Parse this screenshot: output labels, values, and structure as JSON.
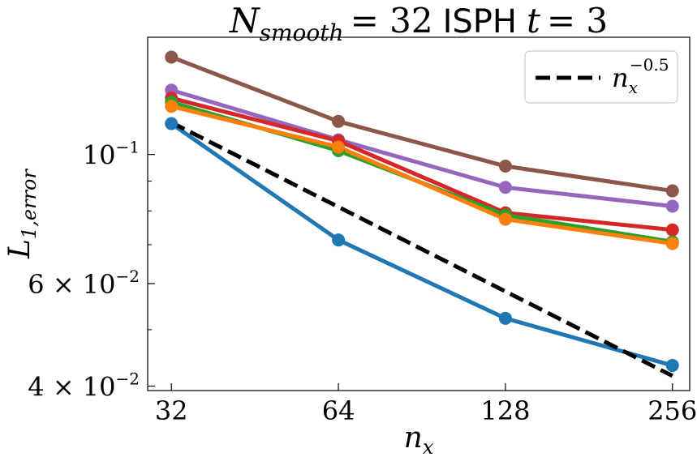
{
  "chart_data": {
    "type": "line",
    "title": {
      "prefix_var": "N",
      "prefix_sub": "smooth",
      "eq_value": "= 32",
      "method": "ISPH",
      "time_var": "t",
      "time_eq": "= 3"
    },
    "xlabel": {
      "var": "n",
      "sub": "x"
    },
    "ylabel": {
      "var": "L",
      "sub": "1,error"
    },
    "x": [
      32,
      64,
      128,
      256
    ],
    "xscale": "log2",
    "yscale": "log",
    "xlim": [
      29,
      275
    ],
    "ylim": [
      0.0393,
      0.159
    ],
    "x_tick_labels": [
      "32",
      "64",
      "128",
      "256"
    ],
    "y_tick_labels": [
      {
        "value": 0.1,
        "mantissa": "",
        "base": "10",
        "exp": "−1"
      },
      {
        "value": 0.06,
        "mantissa": "6 × ",
        "base": "10",
        "exp": "−2"
      },
      {
        "value": 0.04,
        "mantissa": "4 × ",
        "base": "10",
        "exp": "−2"
      }
    ],
    "y_minor_ticks": [
      0.09,
      0.08,
      0.07,
      0.05
    ],
    "grid": false,
    "legend": {
      "placement": "top-right",
      "entries": [
        {
          "var": "n",
          "sub": "x",
          "exp": "−0.5",
          "style": "dashed",
          "color": "#000000"
        }
      ]
    },
    "series": [
      {
        "color": "#8c564b",
        "values": [
          0.147,
          0.114,
          0.0955,
          0.0866
        ]
      },
      {
        "color": "#9467bd",
        "values": [
          0.129,
          0.106,
          0.0878,
          0.0815
        ]
      },
      {
        "color": "#d62728",
        "values": [
          0.125,
          0.1055,
          0.0794,
          0.0742
        ]
      },
      {
        "color": "#2ca02c",
        "values": [
          0.123,
          0.1015,
          0.0787,
          0.0708
        ]
      },
      {
        "color": "#ff7f0e",
        "values": [
          0.121,
          0.103,
          0.0774,
          0.0703
        ]
      },
      {
        "color": "#1f77b4",
        "values": [
          0.113,
          0.0713,
          0.0523,
          0.0434
        ]
      }
    ],
    "reference_line": {
      "style": "dashed",
      "color": "#000000",
      "x": [
        32,
        256
      ],
      "values": [
        0.1135,
        0.04165
      ]
    }
  }
}
